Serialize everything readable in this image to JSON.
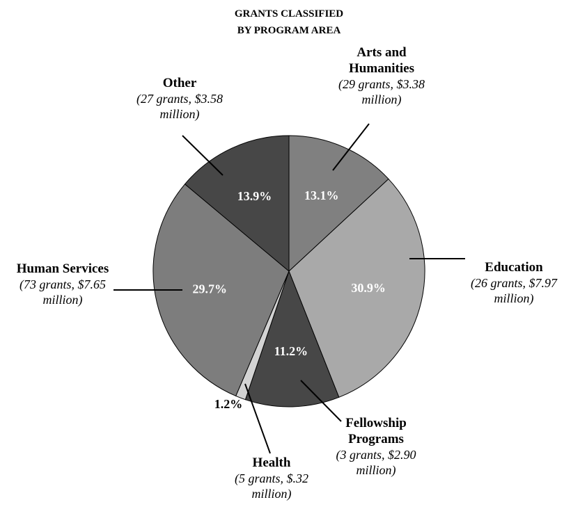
{
  "chart_data": {
    "type": "pie",
    "title": "GRANTS CLASSIFIED BY PROGRAM AREA",
    "categories": [
      "Arts and Humanities",
      "Education",
      "Fellowship Programs",
      "Health",
      "Human Services",
      "Other"
    ],
    "details": [
      "(29 grants, $3.38 million)",
      "(26 grants, $7.97 million)",
      "(3 grants, $2.90 million)",
      "(5 grants, $.32 million)",
      "(73 grants, $7.65 million)",
      "(27 grants, $3.58 million)"
    ],
    "values": [
      13.1,
      30.9,
      11.2,
      1.2,
      29.7,
      13.9
    ],
    "value_labels": [
      "13.1%",
      "30.9%",
      "11.2%",
      "1.2%",
      "29.7%",
      "13.9%"
    ],
    "colors": [
      "#808080",
      "#a9a9a9",
      "#474747",
      "#d3d3d3",
      "#7d7d7d",
      "#474747"
    ]
  }
}
